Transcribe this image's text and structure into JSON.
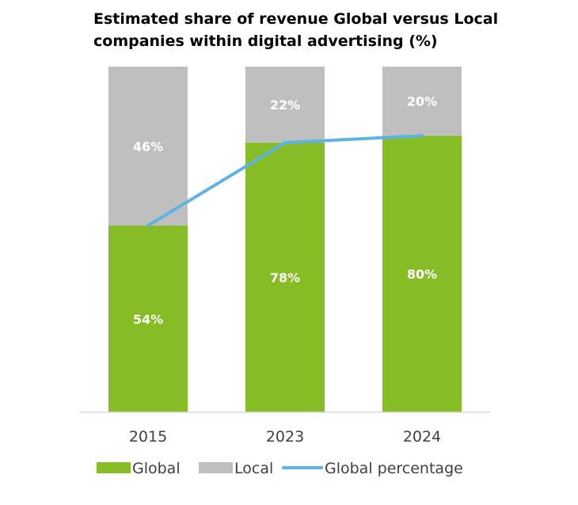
{
  "chart_data": {
    "type": "bar",
    "stacked": true,
    "title": "Estimated share of revenue Global versus Local companies within digital advertising (%)",
    "categories": [
      "2015",
      "2023",
      "2024"
    ],
    "series": [
      {
        "name": "Global",
        "type": "bar",
        "values": [
          54,
          78,
          80
        ],
        "labels": [
          "54%",
          "78%",
          "80%"
        ],
        "color": "#86bc25"
      },
      {
        "name": "Local",
        "type": "bar",
        "values": [
          46,
          22,
          20
        ],
        "labels": [
          "46%",
          "22%",
          "20%"
        ],
        "color": "#bfbfbf"
      },
      {
        "name": "Global percentage",
        "type": "line",
        "values": [
          54,
          78,
          80
        ],
        "color": "#5fb3e0"
      }
    ],
    "ylim": [
      0,
      100
    ],
    "grid": false,
    "legend_position": "bottom"
  }
}
